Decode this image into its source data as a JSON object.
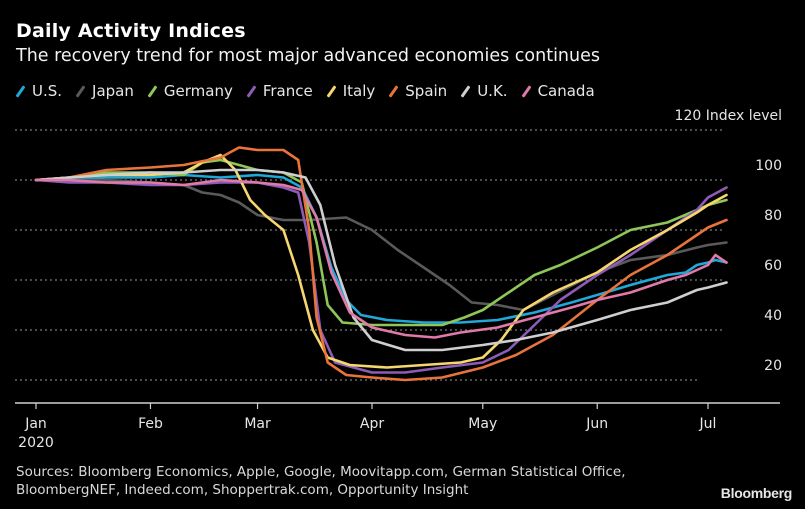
{
  "chart_data": {
    "type": "line",
    "title": "Daily Activity Indices",
    "subtitle": "The recovery trend for most major advanced economies continues",
    "xlabel": "",
    "ylabel": "Index level",
    "y_unit_label": "Index level",
    "ylim": [
      10,
      120
    ],
    "yticks": [
      20,
      40,
      60,
      80,
      100,
      120
    ],
    "xlim": [
      "2020-01-01",
      "2020-07-21"
    ],
    "xticks": [
      {
        "date": "2020-01-01",
        "label": "Jan",
        "sublabel": "2020"
      },
      {
        "date": "2020-02-01",
        "label": "Feb"
      },
      {
        "date": "2020-03-01",
        "label": "Mar"
      },
      {
        "date": "2020-04-01",
        "label": "Apr"
      },
      {
        "date": "2020-05-01",
        "label": "May"
      },
      {
        "date": "2020-06-01",
        "label": "Jun"
      },
      {
        "date": "2020-07-01",
        "label": "Jul"
      }
    ],
    "grid": true,
    "legend_position": "top-left",
    "series": [
      {
        "name": "U.S.",
        "color": "#1fa8d8",
        "points": [
          [
            "2020-01-01",
            100
          ],
          [
            "2020-01-10",
            100
          ],
          [
            "2020-01-20",
            101
          ],
          [
            "2020-02-01",
            101
          ],
          [
            "2020-02-10",
            102
          ],
          [
            "2020-02-20",
            101
          ],
          [
            "2020-03-01",
            102
          ],
          [
            "2020-03-08",
            101
          ],
          [
            "2020-03-13",
            97
          ],
          [
            "2020-03-17",
            85
          ],
          [
            "2020-03-21",
            65
          ],
          [
            "2020-03-25",
            52
          ],
          [
            "2020-03-29",
            46
          ],
          [
            "2020-04-05",
            44
          ],
          [
            "2020-04-15",
            43
          ],
          [
            "2020-04-25",
            43
          ],
          [
            "2020-05-05",
            44
          ],
          [
            "2020-05-15",
            47
          ],
          [
            "2020-05-25",
            51
          ],
          [
            "2020-06-01",
            54
          ],
          [
            "2020-06-10",
            58
          ],
          [
            "2020-06-20",
            62
          ],
          [
            "2020-06-25",
            63
          ],
          [
            "2020-06-28",
            66
          ],
          [
            "2020-07-01",
            67
          ],
          [
            "2020-07-03",
            68
          ],
          [
            "2020-07-06",
            67
          ]
        ]
      },
      {
        "name": "Japan",
        "color": "#5a5a5a",
        "points": [
          [
            "2020-01-01",
            100
          ],
          [
            "2020-01-10",
            100
          ],
          [
            "2020-01-20",
            100
          ],
          [
            "2020-02-01",
            99
          ],
          [
            "2020-02-10",
            98
          ],
          [
            "2020-02-15",
            95
          ],
          [
            "2020-02-20",
            94
          ],
          [
            "2020-02-25",
            91
          ],
          [
            "2020-03-01",
            86
          ],
          [
            "2020-03-08",
            84
          ],
          [
            "2020-03-15",
            84
          ],
          [
            "2020-03-25",
            85
          ],
          [
            "2020-04-01",
            80
          ],
          [
            "2020-04-08",
            72
          ],
          [
            "2020-04-15",
            65
          ],
          [
            "2020-04-22",
            58
          ],
          [
            "2020-04-28",
            51
          ],
          [
            "2020-05-05",
            50
          ],
          [
            "2020-05-12",
            48
          ],
          [
            "2020-05-20",
            54
          ],
          [
            "2020-06-01",
            63
          ],
          [
            "2020-06-10",
            68
          ],
          [
            "2020-06-20",
            70
          ],
          [
            "2020-06-28",
            73
          ],
          [
            "2020-07-01",
            74
          ],
          [
            "2020-07-06",
            75
          ]
        ]
      },
      {
        "name": "Germany",
        "color": "#8fc65a",
        "points": [
          [
            "2020-01-01",
            100
          ],
          [
            "2020-01-10",
            101
          ],
          [
            "2020-01-20",
            103
          ],
          [
            "2020-02-01",
            103
          ],
          [
            "2020-02-10",
            102
          ],
          [
            "2020-02-15",
            107
          ],
          [
            "2020-02-20",
            108
          ],
          [
            "2020-02-25",
            106
          ],
          [
            "2020-03-01",
            104
          ],
          [
            "2020-03-08",
            103
          ],
          [
            "2020-03-13",
            99
          ],
          [
            "2020-03-17",
            75
          ],
          [
            "2020-03-20",
            50
          ],
          [
            "2020-03-24",
            43
          ],
          [
            "2020-04-01",
            42
          ],
          [
            "2020-04-10",
            42
          ],
          [
            "2020-04-20",
            42
          ],
          [
            "2020-04-26",
            45
          ],
          [
            "2020-05-01",
            48
          ],
          [
            "2020-05-08",
            55
          ],
          [
            "2020-05-15",
            62
          ],
          [
            "2020-05-22",
            66
          ],
          [
            "2020-06-01",
            73
          ],
          [
            "2020-06-10",
            80
          ],
          [
            "2020-06-20",
            83
          ],
          [
            "2020-06-28",
            88
          ],
          [
            "2020-07-01",
            90
          ],
          [
            "2020-07-06",
            92
          ]
        ]
      },
      {
        "name": "France",
        "color": "#8d5cb6",
        "points": [
          [
            "2020-01-01",
            100
          ],
          [
            "2020-01-10",
            99
          ],
          [
            "2020-01-20",
            99
          ],
          [
            "2020-02-01",
            98
          ],
          [
            "2020-02-10",
            98
          ],
          [
            "2020-02-20",
            99
          ],
          [
            "2020-03-01",
            99
          ],
          [
            "2020-03-08",
            97
          ],
          [
            "2020-03-12",
            95
          ],
          [
            "2020-03-15",
            75
          ],
          [
            "2020-03-18",
            40
          ],
          [
            "2020-03-22",
            27
          ],
          [
            "2020-04-01",
            23
          ],
          [
            "2020-04-10",
            23
          ],
          [
            "2020-04-20",
            25
          ],
          [
            "2020-05-01",
            27
          ],
          [
            "2020-05-08",
            32
          ],
          [
            "2020-05-15",
            42
          ],
          [
            "2020-05-22",
            52
          ],
          [
            "2020-06-01",
            62
          ],
          [
            "2020-06-10",
            70
          ],
          [
            "2020-06-20",
            80
          ],
          [
            "2020-06-28",
            88
          ],
          [
            "2020-07-01",
            93
          ],
          [
            "2020-07-06",
            97
          ]
        ]
      },
      {
        "name": "Italy",
        "color": "#f5d76e",
        "points": [
          [
            "2020-01-01",
            100
          ],
          [
            "2020-01-10",
            101
          ],
          [
            "2020-01-20",
            102
          ],
          [
            "2020-02-01",
            102
          ],
          [
            "2020-02-10",
            103
          ],
          [
            "2020-02-15",
            107
          ],
          [
            "2020-02-20",
            110
          ],
          [
            "2020-02-24",
            104
          ],
          [
            "2020-02-28",
            92
          ],
          [
            "2020-03-03",
            86
          ],
          [
            "2020-03-08",
            80
          ],
          [
            "2020-03-12",
            62
          ],
          [
            "2020-03-16",
            40
          ],
          [
            "2020-03-20",
            29
          ],
          [
            "2020-03-26",
            26
          ],
          [
            "2020-04-05",
            25
          ],
          [
            "2020-04-15",
            26
          ],
          [
            "2020-04-25",
            27
          ],
          [
            "2020-05-01",
            29
          ],
          [
            "2020-05-06",
            36
          ],
          [
            "2020-05-12",
            48
          ],
          [
            "2020-05-20",
            55
          ],
          [
            "2020-06-01",
            63
          ],
          [
            "2020-06-10",
            72
          ],
          [
            "2020-06-20",
            80
          ],
          [
            "2020-06-28",
            87
          ],
          [
            "2020-07-01",
            90
          ],
          [
            "2020-07-06",
            94
          ]
        ]
      },
      {
        "name": "Spain",
        "color": "#e8743b",
        "points": [
          [
            "2020-01-01",
            100
          ],
          [
            "2020-01-10",
            101
          ],
          [
            "2020-01-20",
            104
          ],
          [
            "2020-02-01",
            105
          ],
          [
            "2020-02-10",
            106
          ],
          [
            "2020-02-20",
            109
          ],
          [
            "2020-02-25",
            113
          ],
          [
            "2020-03-01",
            112
          ],
          [
            "2020-03-08",
            112
          ],
          [
            "2020-03-12",
            108
          ],
          [
            "2020-03-15",
            80
          ],
          [
            "2020-03-17",
            45
          ],
          [
            "2020-03-20",
            27
          ],
          [
            "2020-03-25",
            22
          ],
          [
            "2020-04-01",
            21
          ],
          [
            "2020-04-10",
            20
          ],
          [
            "2020-04-20",
            21
          ],
          [
            "2020-05-01",
            25
          ],
          [
            "2020-05-10",
            30
          ],
          [
            "2020-05-20",
            38
          ],
          [
            "2020-06-01",
            52
          ],
          [
            "2020-06-10",
            62
          ],
          [
            "2020-06-20",
            70
          ],
          [
            "2020-06-28",
            78
          ],
          [
            "2020-07-01",
            81
          ],
          [
            "2020-07-06",
            84
          ]
        ]
      },
      {
        "name": "U.K.",
        "color": "#cfcfcf",
        "points": [
          [
            "2020-01-01",
            100
          ],
          [
            "2020-01-10",
            101
          ],
          [
            "2020-01-20",
            102
          ],
          [
            "2020-02-01",
            103
          ],
          [
            "2020-02-10",
            103
          ],
          [
            "2020-02-20",
            104
          ],
          [
            "2020-03-01",
            104
          ],
          [
            "2020-03-08",
            103
          ],
          [
            "2020-03-14",
            101
          ],
          [
            "2020-03-18",
            90
          ],
          [
            "2020-03-22",
            66
          ],
          [
            "2020-03-27",
            45
          ],
          [
            "2020-04-01",
            36
          ],
          [
            "2020-04-10",
            32
          ],
          [
            "2020-04-20",
            32
          ],
          [
            "2020-05-01",
            34
          ],
          [
            "2020-05-10",
            36
          ],
          [
            "2020-05-20",
            39
          ],
          [
            "2020-06-01",
            44
          ],
          [
            "2020-06-10",
            48
          ],
          [
            "2020-06-20",
            51
          ],
          [
            "2020-06-28",
            56
          ],
          [
            "2020-07-01",
            57
          ],
          [
            "2020-07-06",
            59
          ]
        ]
      },
      {
        "name": "Canada",
        "color": "#e07aa8",
        "points": [
          [
            "2020-01-01",
            100
          ],
          [
            "2020-01-10",
            100
          ],
          [
            "2020-01-20",
            99
          ],
          [
            "2020-02-01",
            99
          ],
          [
            "2020-02-10",
            98
          ],
          [
            "2020-02-20",
            100
          ],
          [
            "2020-03-01",
            99
          ],
          [
            "2020-03-08",
            98
          ],
          [
            "2020-03-13",
            96
          ],
          [
            "2020-03-17",
            85
          ],
          [
            "2020-03-21",
            63
          ],
          [
            "2020-03-26",
            47
          ],
          [
            "2020-04-01",
            41
          ],
          [
            "2020-04-10",
            38
          ],
          [
            "2020-04-18",
            37
          ],
          [
            "2020-04-25",
            39
          ],
          [
            "2020-05-05",
            41
          ],
          [
            "2020-05-15",
            45
          ],
          [
            "2020-05-25",
            49
          ],
          [
            "2020-06-01",
            52
          ],
          [
            "2020-06-10",
            55
          ],
          [
            "2020-06-20",
            60
          ],
          [
            "2020-06-25",
            62
          ],
          [
            "2020-07-01",
            66
          ],
          [
            "2020-07-03",
            70
          ],
          [
            "2020-07-06",
            67
          ]
        ]
      }
    ]
  },
  "header": {
    "title": "Daily Activity Indices",
    "subtitle": "The recovery trend for most major advanced economies continues"
  },
  "legend": [
    "U.S.",
    "Japan",
    "Germany",
    "France",
    "Italy",
    "Spain",
    "U.K.",
    "Canada"
  ],
  "axis": {
    "y_top_label": "120",
    "y_unit": "Index level",
    "year_label": "2020"
  },
  "footer": {
    "sources_line1": "Sources: Bloomberg Economics, Apple, Google, Moovitapp.com, German Statistical Office,",
    "sources_line2": "BloombergNEF, Indeed.com, Shoppertrak.com, Opportunity Insight",
    "brand": "Bloomberg"
  }
}
